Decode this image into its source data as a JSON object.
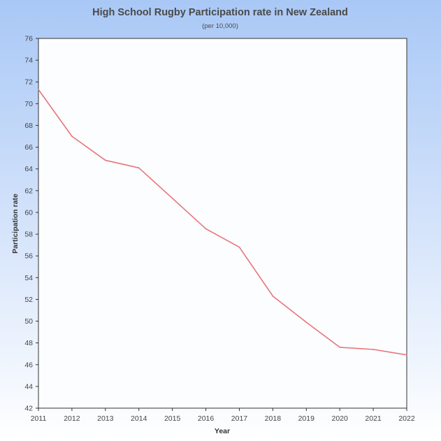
{
  "chart_data": {
    "type": "line",
    "title": "High School Rugby Participation rate in New Zealand",
    "subtitle": "(per 10,000)",
    "xlabel": "Year",
    "ylabel": "Participation rate",
    "x": [
      2011,
      2012,
      2013,
      2014,
      2015,
      2016,
      2017,
      2018,
      2019,
      2020,
      2021,
      2022
    ],
    "xticks": [
      "2011",
      "2012",
      "2013",
      "2014",
      "2015",
      "2016",
      "2017",
      "2018",
      "2019",
      "2020",
      "2021",
      "2022"
    ],
    "yticks": [
      "42",
      "44",
      "46",
      "48",
      "50",
      "52",
      "54",
      "56",
      "58",
      "60",
      "62",
      "64",
      "66",
      "68",
      "70",
      "72",
      "74",
      "76"
    ],
    "ylim": [
      42,
      76
    ],
    "xlim": [
      2011,
      2022
    ],
    "grid": false,
    "series": [
      {
        "values": [
          71.3,
          67.0,
          64.8,
          64.1,
          61.3,
          58.5,
          56.8,
          52.3,
          49.9,
          47.6,
          47.4,
          46.9
        ],
        "color": "#e8757a"
      }
    ],
    "colors": {
      "plot_background": "#fcfdff",
      "plot_border": "#333333",
      "line": "#e8757a"
    }
  }
}
